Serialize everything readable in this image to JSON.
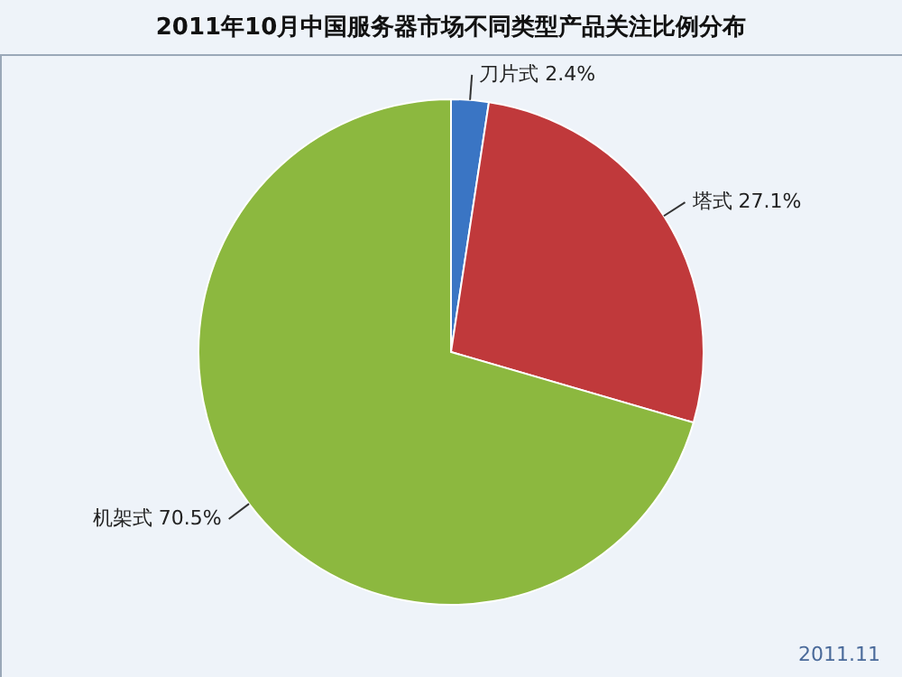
{
  "chart_data": {
    "type": "pie",
    "title": "2011年10月中国服务器市场不同类型产品关注比例分布",
    "categories": [
      "刀片式",
      "塔式",
      "机架式"
    ],
    "values": [
      2.4,
      27.1,
      70.5
    ],
    "value_labels": [
      "2.4%",
      "27.1%",
      "70.5%"
    ],
    "colors": [
      "#3a75c4",
      "#c0393b",
      "#8cb83f"
    ],
    "annotations": [
      "2011.11"
    ]
  }
}
